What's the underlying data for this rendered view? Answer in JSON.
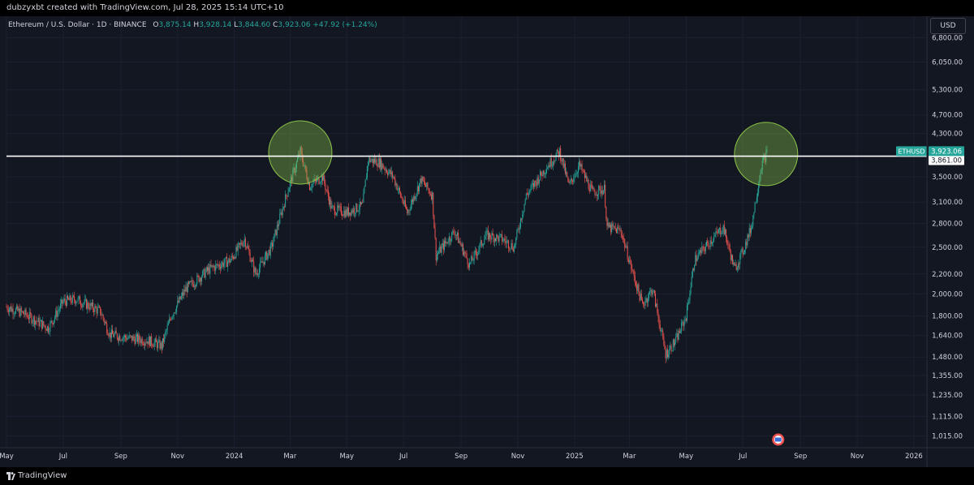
{
  "header": {
    "attribution": "dubzyxbt created with TradingView.com, Jul 28, 2025 15:14 UTC+10"
  },
  "legend": {
    "symbol": "Ethereum / U.S. Dollar · 1D · BINANCE",
    "open_label": "O",
    "open": "3,875.14",
    "high_label": "H",
    "high": "3,928.14",
    "low_label": "L",
    "low": "3,844.60",
    "close_label": "C",
    "close": "3,923.06",
    "change": "+47.92 (+1.24%)"
  },
  "currency_button": "USD",
  "footer": {
    "brand": "TradingView"
  },
  "colors": {
    "background": "#131722",
    "up": "#26a69a",
    "down": "#ef5350",
    "axis_text": "#d1d4dc",
    "circle": "#8bc34a"
  },
  "chart_data": {
    "type": "candlestick",
    "symbol": "ETHUSD",
    "y_scale": "log",
    "ylim": [
      960,
      7300
    ],
    "xlim": [
      "2023-05-01",
      "2026-01-15"
    ],
    "y_ticks": [
      "6,800.00",
      "6,050.00",
      "5,300.00",
      "4,700.00",
      "4,300.00",
      "3,500.00",
      "3,100.00",
      "2,800.00",
      "2,500.00",
      "2,200.00",
      "2,000.00",
      "1,800.00",
      "1,640.00",
      "1,480.00",
      "1,355.00",
      "1,235.00",
      "1,115.00",
      "1,015.00"
    ],
    "x_ticks": [
      {
        "label": "May",
        "date": "2023-05-01"
      },
      {
        "label": "Jul",
        "date": "2023-07-01"
      },
      {
        "label": "Sep",
        "date": "2023-09-01"
      },
      {
        "label": "Nov",
        "date": "2023-11-01"
      },
      {
        "label": "2024",
        "date": "2024-01-01"
      },
      {
        "label": "Mar",
        "date": "2024-03-01"
      },
      {
        "label": "May",
        "date": "2024-05-01"
      },
      {
        "label": "Jul",
        "date": "2024-07-01"
      },
      {
        "label": "Sep",
        "date": "2024-09-01"
      },
      {
        "label": "Nov",
        "date": "2024-11-01"
      },
      {
        "label": "2025",
        "date": "2025-01-01"
      },
      {
        "label": "Mar",
        "date": "2025-03-01"
      },
      {
        "label": "May",
        "date": "2025-05-01"
      },
      {
        "label": "Jul",
        "date": "2025-07-01"
      },
      {
        "label": "Sep",
        "date": "2025-09-01"
      },
      {
        "label": "Nov",
        "date": "2025-11-01"
      },
      {
        "label": "2026",
        "date": "2026-01-01"
      }
    ],
    "price_path": [
      [
        "2023-05-01",
        1880
      ],
      [
        "2023-05-20",
        1820
      ],
      [
        "2023-06-15",
        1700
      ],
      [
        "2023-07-01",
        1930
      ],
      [
        "2023-07-15",
        1950
      ],
      [
        "2023-08-10",
        1840
      ],
      [
        "2023-08-20",
        1650
      ],
      [
        "2023-09-10",
        1620
      ],
      [
        "2023-10-01",
        1600
      ],
      [
        "2023-10-15",
        1560
      ],
      [
        "2023-10-25",
        1800
      ],
      [
        "2023-11-10",
        2050
      ],
      [
        "2023-12-05",
        2250
      ],
      [
        "2023-12-28",
        2350
      ],
      [
        "2024-01-12",
        2600
      ],
      [
        "2024-01-24",
        2200
      ],
      [
        "2024-02-10",
        2500
      ],
      [
        "2024-02-28",
        3300
      ],
      [
        "2024-03-12",
        3950
      ],
      [
        "2024-03-22",
        3350
      ],
      [
        "2024-04-05",
        3500
      ],
      [
        "2024-04-15",
        3000
      ],
      [
        "2024-05-01",
        2950
      ],
      [
        "2024-05-18",
        3050
      ],
      [
        "2024-05-24",
        3800
      ],
      [
        "2024-06-05",
        3750
      ],
      [
        "2024-06-20",
        3500
      ],
      [
        "2024-07-05",
        2950
      ],
      [
        "2024-07-20",
        3450
      ],
      [
        "2024-08-01",
        3200
      ],
      [
        "2024-08-05",
        2400
      ],
      [
        "2024-08-25",
        2700
      ],
      [
        "2024-09-10",
        2300
      ],
      [
        "2024-09-28",
        2650
      ],
      [
        "2024-10-15",
        2600
      ],
      [
        "2024-10-28",
        2500
      ],
      [
        "2024-11-10",
        3200
      ],
      [
        "2024-12-01",
        3650
      ],
      [
        "2024-12-16",
        3950
      ],
      [
        "2024-12-26",
        3350
      ],
      [
        "2025-01-06",
        3700
      ],
      [
        "2025-01-20",
        3250
      ],
      [
        "2025-02-02",
        3300
      ],
      [
        "2025-02-05",
        2750
      ],
      [
        "2025-02-20",
        2700
      ],
      [
        "2025-03-05",
        2200
      ],
      [
        "2025-03-15",
        1900
      ],
      [
        "2025-03-26",
        2050
      ],
      [
        "2025-04-09",
        1500
      ],
      [
        "2025-04-20",
        1600
      ],
      [
        "2025-05-01",
        1800
      ],
      [
        "2025-05-10",
        2350
      ],
      [
        "2025-05-25",
        2550
      ],
      [
        "2025-06-10",
        2750
      ],
      [
        "2025-06-22",
        2250
      ],
      [
        "2025-07-01",
        2450
      ],
      [
        "2025-07-10",
        2750
      ],
      [
        "2025-07-21",
        3700
      ],
      [
        "2025-07-27",
        3923
      ]
    ],
    "level": {
      "price": 3861,
      "label": "3,861.00"
    },
    "last_price": {
      "price": 3923.06,
      "label": "3,923.06",
      "symbol_label": "ETHUSD"
    },
    "highlight_circles": [
      {
        "date": "2024-03-12",
        "price": 3930
      },
      {
        "date": "2025-07-26",
        "price": 3900
      }
    ]
  }
}
